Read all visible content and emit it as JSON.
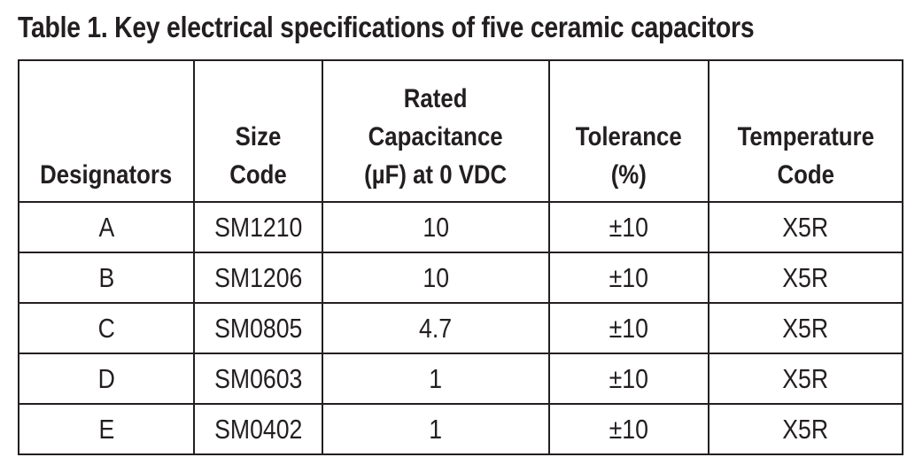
{
  "title": "Table 1. Key electrical specifications of five ceramic capacitors",
  "columns": [
    {
      "lines": [
        "Designators"
      ]
    },
    {
      "lines": [
        "Size",
        "Code"
      ]
    },
    {
      "lines": [
        "Rated",
        "Capacitance",
        "(µF) at 0 VDC"
      ]
    },
    {
      "lines": [
        "Tolerance",
        "(%)"
      ]
    },
    {
      "lines": [
        "Temperature",
        "Code"
      ]
    }
  ],
  "rows": [
    [
      "A",
      "SM1210",
      "10",
      "±10",
      "X5R"
    ],
    [
      "B",
      "SM1206",
      "10",
      "±10",
      "X5R"
    ],
    [
      "C",
      "SM0805",
      "4.7",
      "±10",
      "X5R"
    ],
    [
      "D",
      "SM0603",
      "1",
      "±10",
      "X5R"
    ],
    [
      "E",
      "SM0402",
      "1",
      "±10",
      "X5R"
    ]
  ]
}
